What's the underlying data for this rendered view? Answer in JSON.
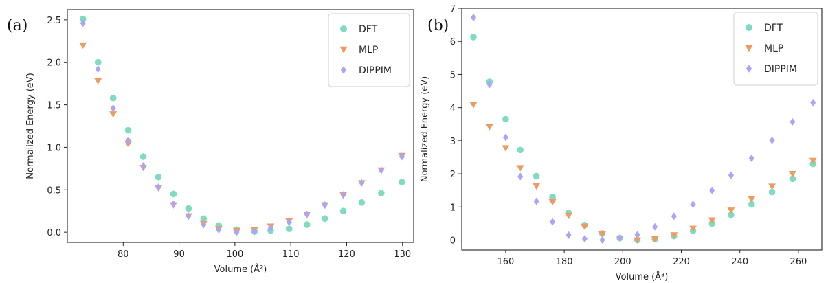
{
  "colors": {
    "DFT": "#7fdcc0",
    "MLP": "#ef9a5e",
    "DIPPIM": "#aaa5f8"
  },
  "chart_data": [
    {
      "type": "scatter",
      "panel_label": "(a)",
      "xlabel": "Volume (Å²)",
      "ylabel": "Normalized Energy (eV)",
      "xlim": [
        70,
        132
      ],
      "ylim": [
        -0.12,
        2.62
      ],
      "xticks": [
        80,
        90,
        100,
        110,
        120,
        130
      ],
      "yticks": [
        0.0,
        0.5,
        1.0,
        1.5,
        2.0,
        2.5
      ],
      "ytick_labels": [
        "0.0",
        "0.5",
        "1.0",
        "1.5",
        "2.0",
        "2.5"
      ],
      "legend_position": "top-right",
      "x": [
        72.8,
        75.5,
        78.2,
        80.9,
        83.6,
        86.3,
        89.0,
        91.7,
        94.4,
        97.1,
        100.3,
        103.5,
        106.4,
        109.7,
        112.9,
        116.1,
        119.4,
        122.7,
        126.2,
        129.9
      ],
      "series": [
        {
          "name": "DFT",
          "marker": "circle",
          "values": [
            2.51,
            2.0,
            1.58,
            1.2,
            0.89,
            0.65,
            0.45,
            0.28,
            0.16,
            0.08,
            0.03,
            0.01,
            0.02,
            0.04,
            0.09,
            0.16,
            0.25,
            0.35,
            0.46,
            0.59
          ]
        },
        {
          "name": "MLP",
          "marker": "triangle-down",
          "values": [
            2.2,
            1.78,
            1.39,
            1.04,
            0.76,
            0.52,
            0.32,
            0.19,
            0.1,
            0.04,
            0.02,
            0.03,
            0.07,
            0.13,
            0.21,
            0.32,
            0.44,
            0.58,
            0.73,
            0.9
          ]
        },
        {
          "name": "DIPPIM",
          "marker": "diamond",
          "values": [
            2.46,
            1.92,
            1.46,
            1.08,
            0.78,
            0.53,
            0.33,
            0.19,
            0.09,
            0.03,
            0.0,
            0.01,
            0.05,
            0.12,
            0.21,
            0.32,
            0.44,
            0.58,
            0.73,
            0.89
          ]
        }
      ]
    },
    {
      "type": "scatter",
      "panel_label": "(b)",
      "xlabel": "Volume (Å³)",
      "ylabel": "Normalized Energy (eV)",
      "xlim": [
        145,
        268
      ],
      "ylim": [
        -0.3,
        7.0
      ],
      "xticks": [
        160,
        180,
        200,
        220,
        240,
        260
      ],
      "yticks": [
        0,
        1,
        2,
        3,
        4,
        5,
        6,
        7
      ],
      "ytick_labels": [
        "0",
        "1",
        "2",
        "3",
        "4",
        "5",
        "6",
        "7"
      ],
      "legend_position": "top-right",
      "x": [
        149,
        154.5,
        160,
        165,
        170.5,
        176,
        181.5,
        187,
        193,
        199,
        205,
        211,
        217.5,
        224,
        230.5,
        237,
        244,
        251,
        258,
        265
      ],
      "series": [
        {
          "name": "DFT",
          "marker": "circle",
          "values": [
            6.13,
            4.78,
            3.65,
            2.72,
            1.93,
            1.3,
            0.82,
            0.45,
            0.2,
            0.06,
            0.0,
            0.03,
            0.12,
            0.28,
            0.5,
            0.76,
            1.08,
            1.45,
            1.85,
            2.3
          ]
        },
        {
          "name": "MLP",
          "marker": "triangle-down",
          "values": [
            4.08,
            3.42,
            2.78,
            2.18,
            1.63,
            1.15,
            0.74,
            0.41,
            0.18,
            0.05,
            0.0,
            0.03,
            0.15,
            0.35,
            0.6,
            0.9,
            1.24,
            1.62,
            2.0,
            2.4
          ]
        },
        {
          "name": "DIPPIM",
          "marker": "diamond",
          "values": [
            6.72,
            4.7,
            3.1,
            1.92,
            1.17,
            0.55,
            0.15,
            0.04,
            0.0,
            0.06,
            0.16,
            0.4,
            0.72,
            1.08,
            1.5,
            1.96,
            2.47,
            3.01,
            3.57,
            4.15
          ]
        }
      ]
    }
  ]
}
